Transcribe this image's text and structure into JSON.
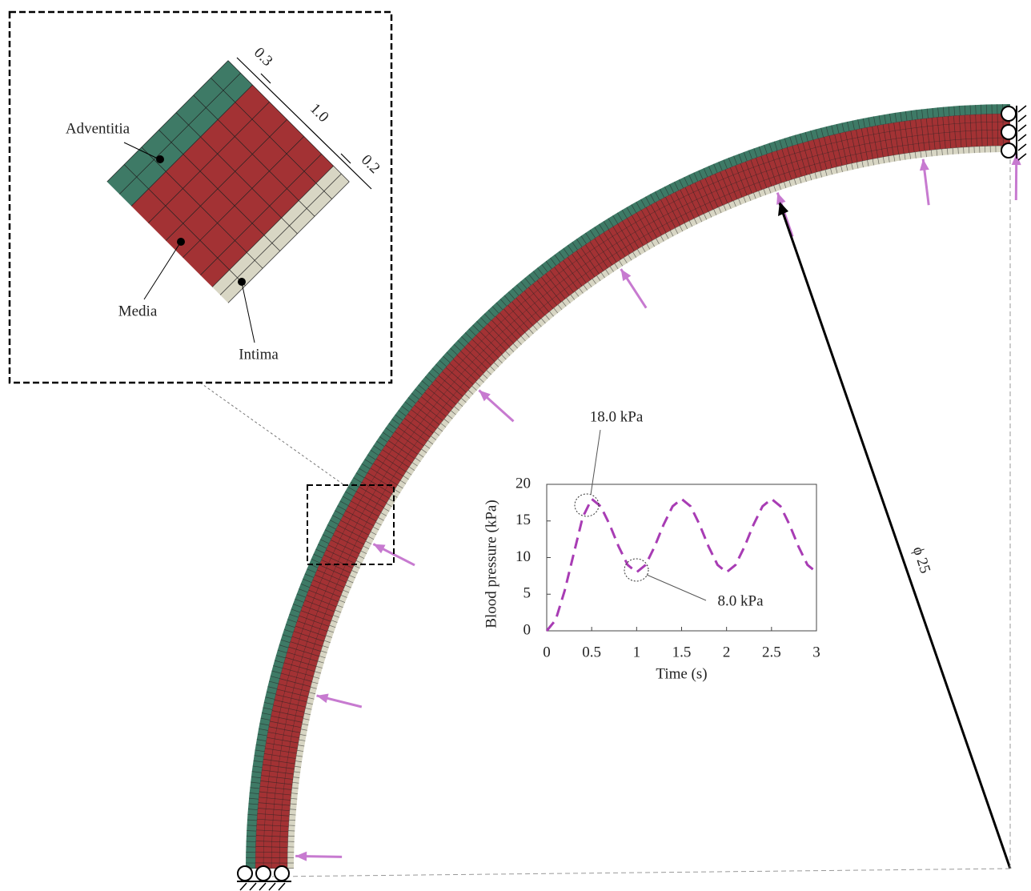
{
  "inset": {
    "labels": {
      "adventitia": "Adventitia",
      "media": "Media",
      "intima": "Intima"
    },
    "dimensions": [
      "0.3",
      "1.0",
      "0.2"
    ]
  },
  "diameter_label": "ϕ 25",
  "chart_data": {
    "type": "line",
    "x_label": "Time (s)",
    "y_label": "Blood pressure (kPa)",
    "x": [
      0,
      0.1,
      0.2,
      0.3,
      0.4,
      0.5,
      0.6,
      0.7,
      0.8,
      0.9,
      1,
      1.1,
      1.2,
      1.3,
      1.4,
      1.5,
      1.6,
      1.7,
      1.8,
      1.9,
      2,
      2.1,
      2.2,
      2.3,
      2.4,
      2.5,
      2.6,
      2.7,
      2.8,
      2.9,
      3
    ],
    "values": [
      0,
      1.5,
      5.5,
      10.5,
      15.5,
      18,
      17,
      14.5,
      11.5,
      9,
      8,
      9,
      11.5,
      14.5,
      17,
      18,
      17,
      14.5,
      11.5,
      9,
      8,
      9,
      11.5,
      14.5,
      17,
      18,
      17,
      14.5,
      11.5,
      9,
      8
    ],
    "color": "#a83cb4",
    "line_style": "dashed",
    "xlim": [
      0,
      3
    ],
    "ylim": [
      0,
      20
    ],
    "xticks": [
      0,
      0.5,
      1,
      1.5,
      2,
      2.5,
      3
    ],
    "yticks": [
      0,
      5,
      10,
      15,
      20
    ],
    "annotations": [
      "18.0 kPa",
      "8.0 kPa"
    ]
  }
}
